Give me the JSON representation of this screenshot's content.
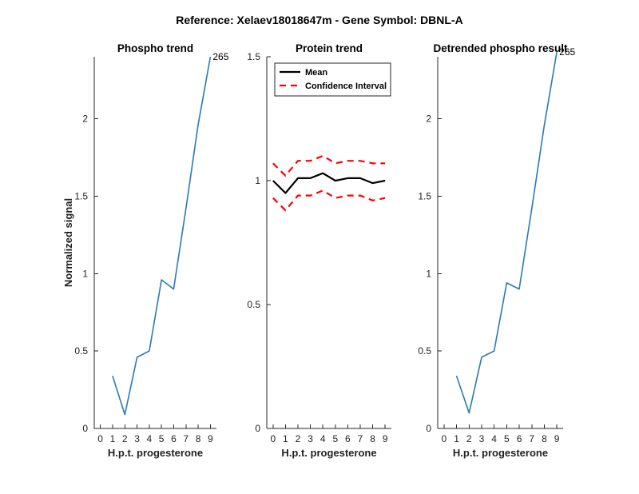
{
  "figure_title": "Reference:  Xelaev18018647m - Gene Symbol:  DBNL-A",
  "colors": {
    "series_blue": "#2a7ab5",
    "mean": "#000000",
    "ci": "#ff0000"
  },
  "chart_data": [
    {
      "type": "line",
      "title": "Phospho trend",
      "xlabel": "H.p.t. progesterone",
      "ylabel": "Normalized signal",
      "x": [
        0,
        1,
        2,
        3,
        4,
        5,
        6,
        7,
        8,
        9
      ],
      "xticks": [
        0,
        1,
        2,
        3,
        4,
        5,
        6,
        7,
        8,
        9
      ],
      "xlim": [
        -0.5,
        9.5
      ],
      "ylim": [
        0,
        2.4
      ],
      "yticks": [
        0,
        0.5,
        1,
        1.5,
        2
      ],
      "yticklabels": [
        "0",
        "0.5",
        "1",
        "1.5",
        "2"
      ],
      "series": [
        {
          "values": [
            0.34,
            0.09,
            0.46,
            0.5,
            0.96,
            0.9,
            1.42,
            1.96,
            2.4
          ]
        }
      ],
      "x_values": [
        1,
        2,
        3,
        4,
        5,
        6,
        7,
        8,
        9
      ],
      "annotation": {
        "text": "265",
        "x": 9,
        "y": 2.4
      }
    },
    {
      "type": "line",
      "title": "Protein trend",
      "xlabel": "H.p.t. progesterone",
      "ylabel": "",
      "x": [
        0,
        1,
        2,
        3,
        4,
        5,
        6,
        7,
        8,
        9
      ],
      "xticks": [
        0,
        1,
        2,
        3,
        4,
        5,
        6,
        7,
        8,
        9
      ],
      "xlim": [
        -0.5,
        9.5
      ],
      "ylim": [
        0,
        1.5
      ],
      "yticks": [
        0,
        0.5,
        1,
        1.5
      ],
      "yticklabels": [
        "0",
        "0.5",
        "1",
        "1.5"
      ],
      "legend_position": "top-left",
      "series": [
        {
          "name": "Mean",
          "style": "solid",
          "values": [
            1.0,
            0.95,
            1.01,
            1.01,
            1.03,
            1.0,
            1.01,
            1.01,
            0.99,
            1.0
          ]
        },
        {
          "name": "Confidence Interval",
          "style": "dashed",
          "values": [
            1.07,
            1.02,
            1.08,
            1.08,
            1.1,
            1.07,
            1.08,
            1.08,
            1.07,
            1.07
          ]
        },
        {
          "style": "dashed",
          "values": [
            0.93,
            0.88,
            0.94,
            0.94,
            0.96,
            0.93,
            0.94,
            0.94,
            0.92,
            0.93
          ]
        }
      ]
    },
    {
      "type": "line",
      "title": "Detrended phospho result",
      "xlabel": "H.p.t. progesterone",
      "ylabel": "",
      "x": [
        0,
        1,
        2,
        3,
        4,
        5,
        6,
        7,
        8,
        9
      ],
      "xticks": [
        0,
        1,
        2,
        3,
        4,
        5,
        6,
        7,
        8,
        9
      ],
      "xlim": [
        -0.5,
        9.5
      ],
      "ylim": [
        0,
        2.4
      ],
      "yticks": [
        0,
        0.5,
        1,
        1.5,
        2
      ],
      "yticklabels": [
        "0",
        "0.5",
        "1",
        "1.5",
        "2"
      ],
      "series": [
        {
          "values": [
            0.34,
            0.1,
            0.46,
            0.5,
            0.94,
            0.9,
            1.42,
            1.96,
            2.43
          ]
        }
      ],
      "x_values": [
        1,
        2,
        3,
        4,
        5,
        6,
        7,
        8,
        9
      ],
      "annotation": {
        "text": "265",
        "x": 9,
        "y": 2.43
      }
    }
  ]
}
